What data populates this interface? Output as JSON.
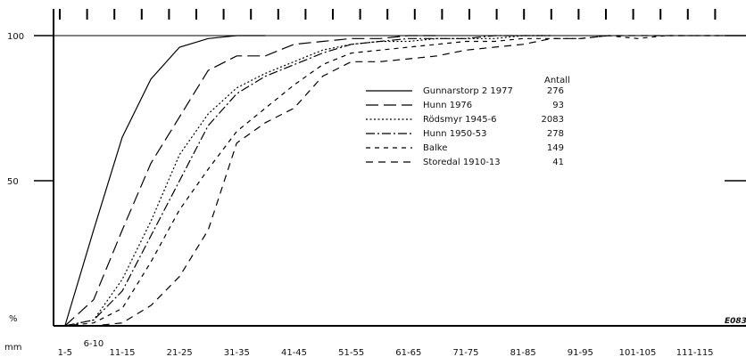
{
  "chart_data": {
    "type": "line",
    "title": "",
    "xlabel": "mm",
    "ylabel": "%",
    "ylim": [
      0,
      100
    ],
    "grid": false,
    "legend_position": "top-right",
    "legend_header": "Antall",
    "corner_mark": "E083",
    "x_tick_labels": [
      "1-5",
      "6-10",
      "11-15",
      "21-25",
      "31-35",
      "41-45",
      "51-55",
      "61-65",
      "71-75",
      "81-85",
      "91-95",
      "101-105",
      "111-115"
    ],
    "y_tick_labels": [
      "100",
      "50"
    ],
    "series": [
      {
        "name": "Gunnarstorp 2 1977",
        "count": "276",
        "style": "solid",
        "x": [
          3,
          8,
          13,
          18,
          23,
          28,
          33,
          38
        ],
        "y": [
          0,
          33,
          65,
          85,
          96,
          99,
          100,
          100
        ]
      },
      {
        "name": "Hunn 1976",
        "count": "93",
        "style": "longdash",
        "x": [
          3,
          8,
          13,
          18,
          23,
          28,
          33,
          38,
          43,
          48,
          53,
          58,
          63,
          68
        ],
        "y": [
          0,
          9,
          33,
          56,
          72,
          88,
          93,
          93,
          97,
          98,
          99,
          99,
          100,
          100
        ]
      },
      {
        "name": "Rödsmyr 1945-6",
        "count": "2083",
        "style": "dotted",
        "x": [
          3,
          8,
          13,
          18,
          23,
          28,
          33,
          38,
          43,
          48,
          53,
          58,
          63,
          68,
          73,
          78,
          83,
          88
        ],
        "y": [
          0,
          2,
          16,
          36,
          59,
          73,
          82,
          87,
          91,
          95,
          97,
          98,
          98,
          99,
          99,
          99,
          100,
          100
        ]
      },
      {
        "name": "Hunn 1950-53",
        "count": "278",
        "style": "dashdot",
        "x": [
          3,
          8,
          13,
          18,
          23,
          28,
          33,
          38,
          43,
          48,
          53,
          58,
          63,
          68,
          73,
          78,
          83,
          88
        ],
        "y": [
          0,
          2,
          12,
          31,
          50,
          69,
          80,
          86,
          90,
          94,
          97,
          98,
          99,
          99,
          99,
          100,
          100,
          100
        ]
      },
      {
        "name": "Balke",
        "count": "149",
        "style": "shortdash",
        "x": [
          3,
          8,
          13,
          18,
          23,
          28,
          33,
          38,
          43,
          48,
          53,
          58,
          63,
          68,
          73,
          78,
          83,
          88,
          93,
          98,
          103,
          108,
          113,
          118
        ],
        "y": [
          0,
          1,
          6,
          22,
          40,
          54,
          67,
          75,
          83,
          90,
          94,
          95,
          96,
          97,
          98,
          98,
          99,
          99,
          99,
          100,
          99,
          100,
          100,
          100
        ]
      },
      {
        "name": "Storedal 1910-13",
        "count": "41",
        "style": "dashed",
        "x": [
          3,
          8,
          13,
          18,
          23,
          28,
          33,
          38,
          43,
          48,
          53,
          58,
          63,
          68,
          73,
          78,
          83,
          88,
          93,
          98,
          103,
          108,
          113,
          118
        ],
        "y": [
          0,
          0,
          1,
          7,
          17,
          33,
          63,
          70,
          75,
          86,
          91,
          91,
          92,
          93,
          95,
          96,
          97,
          99,
          99,
          100,
          100,
          100,
          100,
          100
        ]
      }
    ]
  }
}
